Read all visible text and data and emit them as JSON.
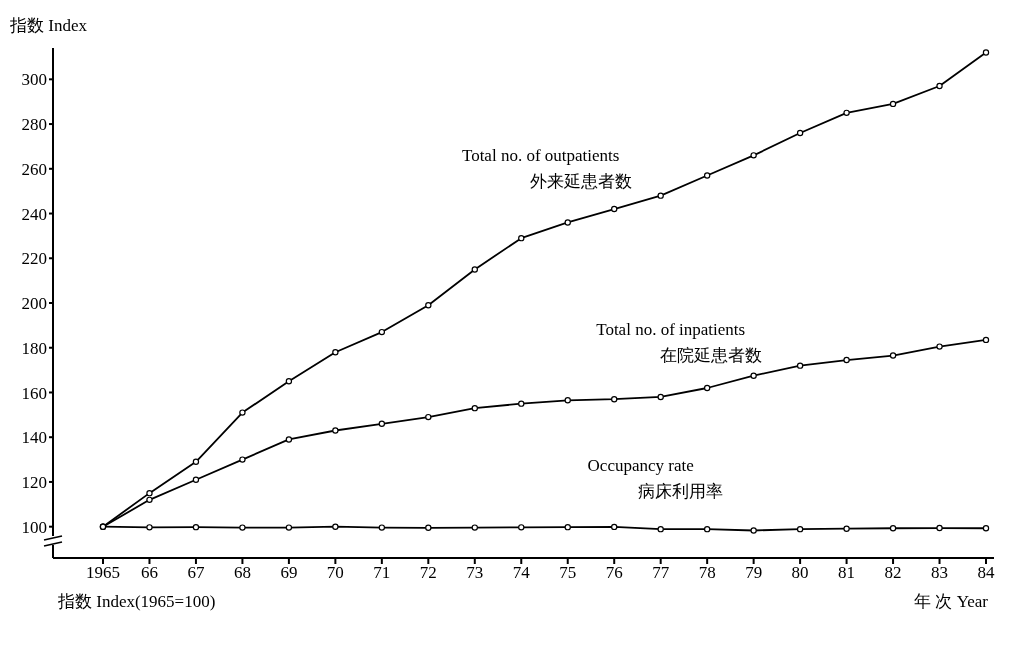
{
  "chart_data": {
    "type": "line",
    "ylabel": "指数 Index",
    "xlabel": "年 次 Year",
    "annotations": [
      "指数 Index(1965=100)"
    ],
    "categories": [
      "1965",
      "66",
      "67",
      "68",
      "69",
      "70",
      "71",
      "72",
      "73",
      "74",
      "75",
      "76",
      "77",
      "78",
      "79",
      "80",
      "81",
      "82",
      "83",
      "84"
    ],
    "series": [
      {
        "name": "Total no. of outpatients\n外来延患者数",
        "color": "#000000",
        "values": [
          100,
          115,
          129,
          151,
          165,
          178,
          187,
          199,
          215,
          229,
          236,
          242,
          248,
          257,
          266,
          276,
          285,
          289,
          297,
          312
        ]
      },
      {
        "name": "Total no. of inpatients\n在院延患者数",
        "color": "#000000",
        "values": [
          100,
          112,
          121,
          130,
          139,
          143,
          146,
          149,
          153,
          155,
          156.5,
          157,
          158,
          162,
          167.5,
          172,
          174.5,
          176.5,
          180.5,
          183.5
        ]
      },
      {
        "name": "Occupancy rate\n病床利用率",
        "color": "#000000",
        "values": [
          100,
          99.7,
          99.8,
          99.6,
          99.6,
          100,
          99.6,
          99.5,
          99.6,
          99.7,
          99.8,
          99.9,
          98.9,
          98.9,
          98.3,
          98.9,
          99.1,
          99.3,
          99.4,
          99.3
        ]
      }
    ],
    "ylim": [
      86,
      314
    ],
    "yticks": [
      100,
      120,
      140,
      160,
      180,
      200,
      220,
      240,
      260,
      280,
      300
    ],
    "grid": false,
    "legend": false,
    "marker": "circle",
    "line_style": "solid"
  }
}
